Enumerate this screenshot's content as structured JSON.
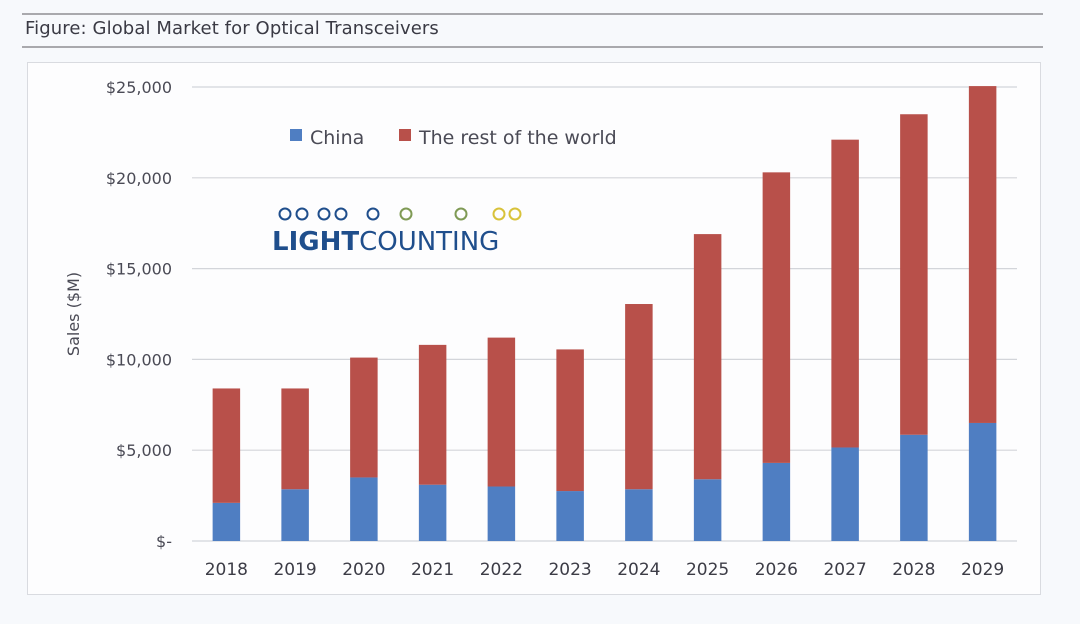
{
  "figure": {
    "title": "Figure: Global Market for Optical Transceivers"
  },
  "logo": {
    "text_bold": "LIGHT",
    "text_regular": "COUNTING"
  },
  "colors": {
    "china": "#4f7ec2",
    "rest_of_world": "#b8504a",
    "grid": "#d3d5da",
    "logo_blue": "#1f4e8c",
    "logo_yellow": "#d8c23a"
  },
  "chart_data": {
    "type": "bar",
    "stacked": true,
    "title": "Global Market for Optical Transceivers",
    "xlabel": "",
    "ylabel": "Sales ($M)",
    "ylim": [
      0,
      25000
    ],
    "yticks": [
      0,
      5000,
      10000,
      15000,
      20000,
      25000
    ],
    "ytick_labels": [
      "$-",
      "$5,000",
      "$10,000",
      "$15,000",
      "$20,000",
      "$25,000"
    ],
    "grid": true,
    "legend_position": "top-left",
    "categories": [
      "2018",
      "2019",
      "2020",
      "2021",
      "2022",
      "2023",
      "2024",
      "2025",
      "2026",
      "2027",
      "2028",
      "2029"
    ],
    "series": [
      {
        "name": "China",
        "values": [
          2100,
          2850,
          3500,
          3100,
          3000,
          2750,
          2850,
          3400,
          4300,
          5150,
          5850,
          6500
        ]
      },
      {
        "name": "The rest of the world",
        "values": [
          6300,
          5550,
          6600,
          7700,
          8200,
          7800,
          10200,
          13500,
          16000,
          16950,
          17650,
          18550
        ]
      }
    ],
    "totals": [
      8400,
      8400,
      10100,
      10800,
      11200,
      10550,
      13050,
      16900,
      20300,
      22100,
      23500,
      25050
    ]
  }
}
